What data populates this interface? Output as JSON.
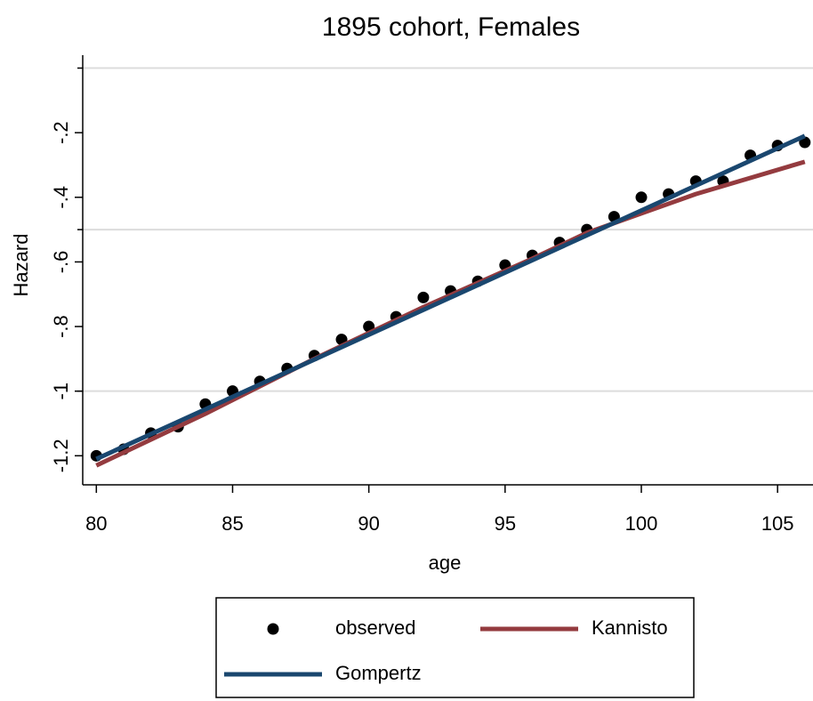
{
  "chart_data": {
    "type": "line",
    "title": "1895 cohort, Females",
    "xlabel": "age",
    "ylabel": "Hazard",
    "xlim": [
      79.5,
      106.3
    ],
    "ylim": [
      -1.29,
      0.04
    ],
    "xticks": [
      80,
      85,
      90,
      95,
      100,
      105
    ],
    "yticks": [
      -1.2,
      -1,
      {
        "value": -0.8,
        "label": "-.8"
      },
      {
        "value": -0.6,
        "label": "-.6"
      },
      {
        "value": -0.4,
        "label": "-.4"
      },
      {
        "value": -0.2,
        "label": "-.2"
      }
    ],
    "ygrid": [
      0,
      -0.5,
      -1
    ],
    "series": [
      {
        "name": "observed",
        "style": "markers",
        "color": "#000000",
        "x": [
          80,
          81,
          82,
          83,
          84,
          85,
          86,
          87,
          88,
          89,
          90,
          91,
          92,
          93,
          94,
          95,
          96,
          97,
          98,
          99,
          100,
          101,
          102,
          103,
          104,
          105,
          106
        ],
        "values": [
          -1.2,
          -1.18,
          -1.13,
          -1.11,
          -1.04,
          -1.0,
          -0.97,
          -0.93,
          -0.89,
          -0.84,
          -0.8,
          -0.77,
          -0.71,
          -0.69,
          -0.66,
          -0.61,
          -0.58,
          -0.54,
          -0.5,
          -0.46,
          -0.4,
          -0.39,
          -0.35,
          -0.35,
          -0.27,
          -0.24,
          -0.23
        ]
      },
      {
        "name": "Kannisto",
        "style": "line",
        "color": "#943b3f",
        "x": [
          80,
          84,
          88,
          92,
          96,
          98,
          100,
          102,
          104,
          106
        ],
        "values": [
          -1.23,
          -1.07,
          -0.9,
          -0.74,
          -0.59,
          -0.51,
          -0.45,
          -0.39,
          -0.34,
          -0.29
        ]
      },
      {
        "name": "Gompertz",
        "style": "line",
        "color": "#1a476f",
        "x": [
          80,
          106
        ],
        "values": [
          -1.21,
          -0.21
        ]
      }
    ]
  }
}
